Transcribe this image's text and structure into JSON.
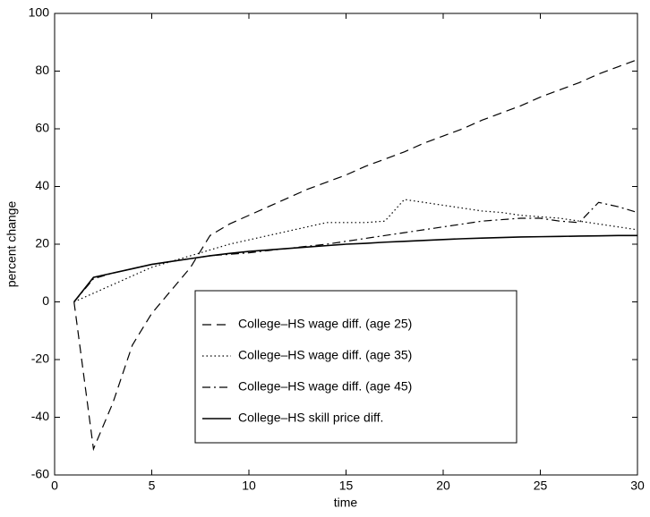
{
  "chart_data": {
    "type": "line",
    "xlabel": "time",
    "ylabel": "percent change",
    "x": [
      1,
      2,
      3,
      4,
      5,
      6,
      7,
      8,
      9,
      10,
      11,
      12,
      13,
      14,
      15,
      16,
      17,
      18,
      19,
      20,
      21,
      22,
      23,
      24,
      25,
      26,
      27,
      28,
      29,
      30
    ],
    "series": [
      {
        "name": "College–HS wage diff. (age 25)",
        "color": "#000000",
        "linestyle": "dashed",
        "values": [
          0,
          -51,
          -35,
          -15,
          -4,
          4,
          12,
          23,
          27,
          30,
          33,
          36,
          39,
          41.5,
          44,
          47,
          49.5,
          52,
          55,
          57.5,
          60,
          63,
          65.5,
          68,
          71,
          73.5,
          76,
          79,
          81.5,
          84
        ]
      },
      {
        "name": "College–HS wage diff. (age 35)",
        "color": "#000000",
        "linestyle": "dotted",
        "values": [
          0,
          3,
          6,
          9,
          12,
          14,
          16,
          18,
          20,
          21.5,
          23,
          24.5,
          26,
          27.5,
          27.5,
          27.5,
          28,
          35.5,
          34.5,
          33.5,
          32.5,
          31.5,
          31,
          30,
          29.5,
          29,
          28,
          27,
          26,
          25
        ]
      },
      {
        "name": "College–HS wage diff. (age 45)",
        "color": "#000000",
        "linestyle": "dashdot",
        "values": [
          0,
          8,
          10,
          11.5,
          13,
          14,
          15,
          16,
          16.5,
          17,
          17.8,
          18.5,
          19.3,
          20,
          21,
          22,
          23,
          24,
          25,
          26,
          27,
          28,
          28.5,
          29,
          29,
          28,
          27.5,
          34.5,
          33,
          31
        ]
      },
      {
        "name": "College–HS skill price diff.",
        "color": "#000000",
        "linestyle": "solid",
        "values": [
          0,
          8.5,
          10,
          11.5,
          13,
          14,
          15,
          16,
          16.8,
          17.5,
          18,
          18.5,
          19,
          19.5,
          20,
          20.3,
          20.7,
          21,
          21.3,
          21.6,
          21.9,
          22.1,
          22.3,
          22.5,
          22.6,
          22.7,
          22.8,
          22.9,
          23,
          23
        ]
      }
    ],
    "xlim": [
      0,
      30
    ],
    "xticks": [
      0,
      5,
      10,
      15,
      20,
      25,
      30
    ],
    "ylim": [
      -60,
      100
    ],
    "yticks": [
      -60,
      -40,
      -20,
      0,
      20,
      40,
      60,
      80,
      100
    ],
    "grid": false,
    "legend_loc": "lower center"
  }
}
